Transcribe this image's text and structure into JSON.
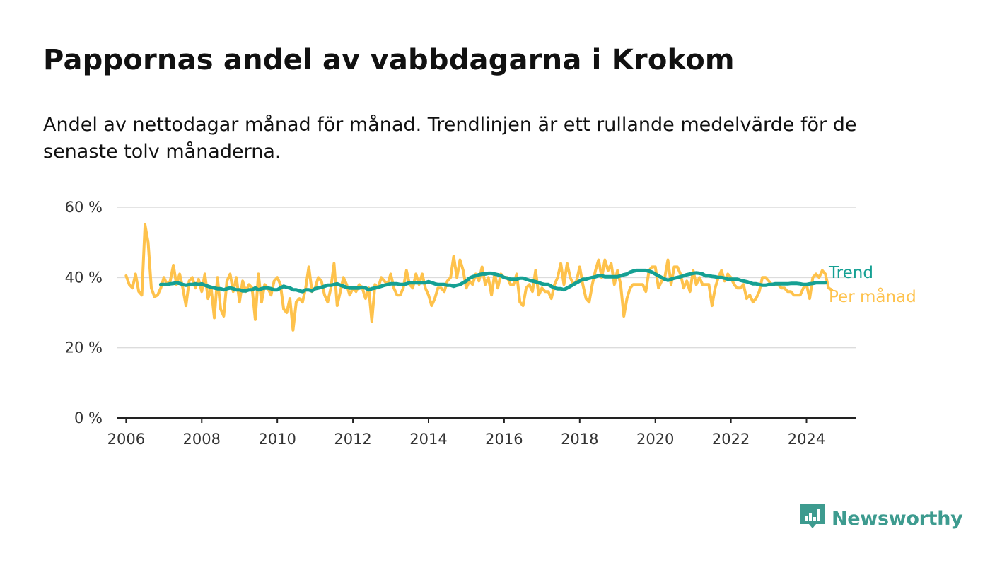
{
  "title": "Pappornas andel av vabbdagarna i Krokom",
  "subtitle": "Andel av nettodagar månad för månad. Trendlinjen är ett rullande medelvärde för de senaste tolv månaderna.",
  "brand": {
    "name": "Newsworthy",
    "color": "#3d9b8f"
  },
  "chart_data": {
    "type": "line",
    "title": "Pappornas andel av vabbdagarna i Krokom",
    "xlabel": "",
    "ylabel": "",
    "xlim": [
      2005.75,
      2025.3
    ],
    "ylim": [
      0,
      60
    ],
    "grid": true,
    "legend": "right",
    "x_ticks": [
      2006,
      2008,
      2010,
      2012,
      2014,
      2016,
      2018,
      2020,
      2022,
      2024
    ],
    "x_tick_labels": [
      "2006",
      "2008",
      "2010",
      "2012",
      "2014",
      "2016",
      "2018",
      "2020",
      "2022",
      "2024"
    ],
    "y_ticks": [
      0,
      20,
      40,
      60
    ],
    "y_tick_labels": [
      "0 %",
      "20 %",
      "40 %",
      "60 %"
    ],
    "series": [
      {
        "name": "Per månad",
        "color": "#fec24c",
        "x_start": 2006.0,
        "step": 0.0833333,
        "values": [
          40.5,
          38,
          37,
          41,
          36,
          35,
          55,
          50,
          37,
          34.5,
          35,
          37,
          40,
          38,
          39,
          43.5,
          38,
          41,
          37,
          32,
          39,
          40,
          37,
          39.5,
          36,
          41,
          34,
          37,
          28.5,
          40,
          31,
          29,
          39,
          41,
          36,
          40,
          33,
          39,
          36,
          38,
          37,
          28,
          41,
          33,
          38,
          37,
          35,
          39,
          40,
          38,
          31,
          30,
          34,
          25,
          33,
          34,
          33,
          37,
          43,
          36,
          37,
          40,
          39,
          35,
          33,
          37,
          44,
          32,
          36,
          40,
          38,
          35,
          37,
          36,
          38,
          37,
          34,
          37,
          27.5,
          38,
          37,
          40,
          39,
          38,
          41,
          37,
          35,
          35,
          37,
          42,
          38,
          37,
          41,
          38,
          41,
          37,
          35,
          32,
          34,
          37,
          37,
          36,
          39,
          40,
          46,
          40,
          45,
          42,
          37,
          39,
          38,
          41,
          39,
          43,
          38,
          40,
          35,
          41,
          37,
          41,
          40,
          40,
          38,
          38,
          41,
          33,
          32,
          37,
          38,
          36,
          42,
          35,
          37,
          36,
          36,
          34,
          38,
          40,
          44,
          38,
          44,
          40,
          38,
          39,
          43,
          38,
          34,
          33,
          38,
          42,
          45,
          40,
          45,
          42,
          44,
          38,
          42,
          38,
          29,
          34,
          37,
          38,
          38,
          38,
          38,
          36,
          42,
          43,
          43,
          37,
          39,
          40,
          45,
          38,
          43,
          43,
          41,
          37,
          39,
          36,
          42,
          38,
          40,
          38,
          38,
          38,
          32,
          37,
          40,
          42,
          39,
          41,
          40,
          38,
          37,
          37,
          38,
          34,
          35,
          33,
          34,
          36,
          40,
          40,
          39,
          38,
          38,
          38,
          37,
          37,
          36,
          36,
          35,
          35,
          35,
          37,
          38,
          34,
          40,
          41,
          40,
          42,
          41,
          37,
          36.5
        ]
      },
      {
        "name": "Trend",
        "color": "#15a093",
        "x_start": 2006.9167,
        "step": 0.0833333,
        "values": [
          38,
          38,
          38,
          38.2,
          38.3,
          38.5,
          38.3,
          38,
          37.8,
          38,
          38,
          38.2,
          38,
          38.2,
          37.8,
          37.5,
          37.2,
          37,
          36.8,
          36.8,
          36.5,
          36.8,
          37,
          36.8,
          36.5,
          36.5,
          36.2,
          36.2,
          36.5,
          36.5,
          37,
          36.5,
          36.8,
          37,
          37,
          36.8,
          36.5,
          36.5,
          37,
          37.5,
          37.2,
          37,
          36.5,
          36.5,
          36.2,
          36,
          36.5,
          36.5,
          36.2,
          36.8,
          37,
          37.2,
          37.5,
          37.8,
          37.8,
          38,
          38.2,
          37.8,
          37.5,
          37.2,
          37,
          37,
          37,
          37,
          37.2,
          37,
          36.5,
          36.8,
          37,
          37.2,
          37.5,
          37.8,
          38,
          38.2,
          38.2,
          38.2,
          38,
          38,
          38.2,
          38.5,
          38.5,
          38.5,
          38.5,
          38.5,
          38.5,
          38.8,
          38.5,
          38.2,
          38,
          38,
          38,
          37.8,
          37.8,
          37.5,
          37.8,
          38,
          38.5,
          39,
          39.8,
          40.2,
          40.5,
          40.8,
          41,
          41,
          41.2,
          41.2,
          41,
          40.8,
          40.5,
          40,
          39.8,
          39.5,
          39.5,
          39.5,
          39.8,
          39.8,
          39.5,
          39.2,
          39,
          38.8,
          38.5,
          38.2,
          38,
          38,
          37.5,
          37,
          36.8,
          36.8,
          36.5,
          37,
          37.5,
          38,
          38.5,
          39,
          39.5,
          39.5,
          39.8,
          40,
          40.2,
          40.5,
          40.5,
          40.2,
          40.2,
          40.2,
          40.2,
          40.2,
          40.5,
          40.8,
          41,
          41.5,
          41.8,
          42,
          42,
          42,
          42,
          41.8,
          41.5,
          41,
          40.5,
          40,
          39.5,
          39.2,
          39.5,
          39.8,
          40,
          40.2,
          40.5,
          40.8,
          41,
          41.2,
          41.3,
          41.2,
          41,
          40.5,
          40.5,
          40.3,
          40.2,
          40,
          40,
          39.8,
          39.5,
          39.5,
          39.5,
          39.5,
          39.2,
          39,
          38.8,
          38.5,
          38.2,
          38.2,
          38,
          37.8,
          37.8,
          38,
          38,
          38.2,
          38.2,
          38.2,
          38.2,
          38.2,
          38.3,
          38.3,
          38.3,
          38.2,
          38,
          38,
          38.2,
          38.3,
          38.5,
          38.5,
          38.5,
          38.5
        ]
      }
    ]
  }
}
